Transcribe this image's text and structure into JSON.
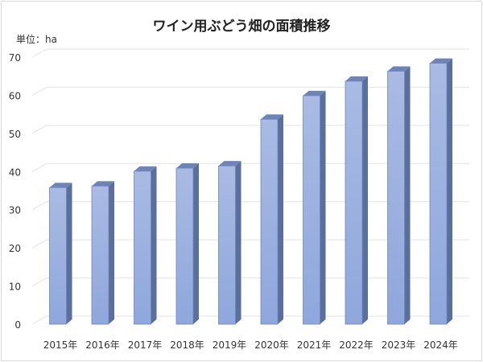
{
  "chart_data": {
    "type": "bar",
    "title": "ワイン用ぶどう畑の面積推移",
    "unit_label": "単位：ha",
    "xlabel": "",
    "ylabel": "",
    "categories": [
      "2015年",
      "2016年",
      "2017年",
      "2018年",
      "2019年",
      "2020年",
      "2021年",
      "2022年",
      "2023年",
      "2024年"
    ],
    "values": [
      35.8,
      36.2,
      40.1,
      40.9,
      41.5,
      53.7,
      59.9,
      63.7,
      66.3,
      68.4
    ],
    "ylim": [
      0,
      70
    ],
    "yticks": [
      0,
      10,
      20,
      30,
      40,
      50,
      60,
      70
    ],
    "grid": true,
    "style": "3d-column",
    "colors": {
      "front": "#8fa7dc",
      "front_top": "#a9bbe3",
      "side": "#5a6f9c",
      "top": "#6f84b4",
      "grid": "#e3e3e3"
    }
  }
}
